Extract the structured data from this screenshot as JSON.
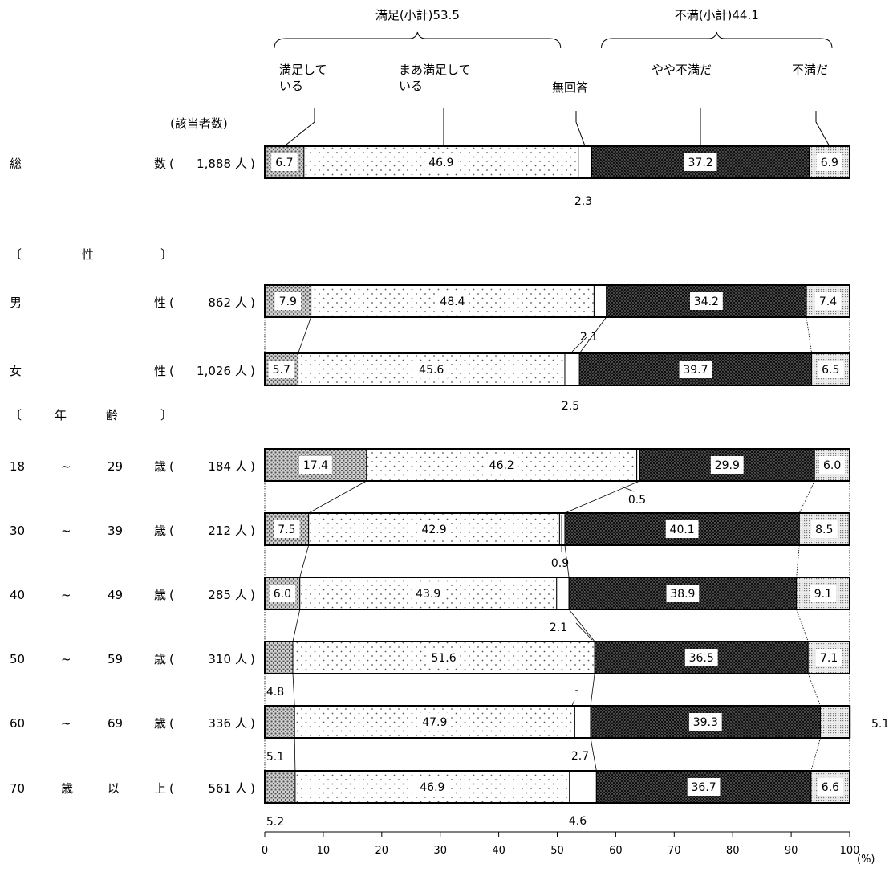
{
  "chart_data": {
    "type": "bar",
    "orientation": "horizontal",
    "stacked": true,
    "xlim": [
      0,
      100
    ],
    "xticks": [
      "0",
      "10",
      "20",
      "30",
      "40",
      "50",
      "60",
      "70",
      "80",
      "90",
      "100"
    ],
    "unit_label": "(%)",
    "count_header": "(該当者数)",
    "groups": [
      {
        "text": "満足(小計)53.5"
      },
      {
        "text": "不満(小計)44.1"
      }
    ],
    "series": [
      {
        "name": "満足している",
        "name_lines": [
          "満足して",
          "いる"
        ],
        "color": "#b8b8b8",
        "pattern": "p-manzoku"
      },
      {
        "name": "まあ満足している",
        "name_lines": [
          "まあ満足して",
          "いる"
        ],
        "color": "#ffffff",
        "pattern": "p-maa"
      },
      {
        "name": "無回答",
        "name_lines": [
          "無回答"
        ],
        "color": "#ffffff",
        "pattern": "none"
      },
      {
        "name": "やや不満だ",
        "name_lines": [
          "やや不満だ"
        ],
        "color": "#111111",
        "pattern": "p-yaya"
      },
      {
        "name": "不満だ",
        "name_lines": [
          "不満だ"
        ],
        "color": "#d8d8d8",
        "pattern": "p-fuman"
      }
    ],
    "section_headers": [
      {
        "chars": [
          "〔",
          "性",
          "〕"
        ]
      },
      {
        "chars": [
          "〔",
          "年",
          "齢",
          "〕"
        ]
      }
    ],
    "rows": [
      {
        "label_parts": [
          "総",
          "数"
        ],
        "count": "1,888",
        "person": "人",
        "values": [
          6.7,
          46.9,
          2.3,
          37.2,
          6.9
        ],
        "labels": [
          "6.7",
          "46.9",
          "2.3",
          "37.2",
          "6.9"
        ]
      },
      {
        "label_parts": [
          "男",
          "性"
        ],
        "count": "862",
        "person": "人",
        "values": [
          7.9,
          48.4,
          2.1,
          34.2,
          7.4
        ],
        "labels": [
          "7.9",
          "48.4",
          "2.1",
          "34.2",
          "7.4"
        ]
      },
      {
        "label_parts": [
          "女",
          "性"
        ],
        "count": "1,026",
        "person": "人",
        "values": [
          5.7,
          45.6,
          2.5,
          39.7,
          6.5
        ],
        "labels": [
          "5.7",
          "45.6",
          "2.5",
          "39.7",
          "6.5"
        ]
      },
      {
        "label_parts": [
          "18",
          "~",
          "29",
          "歳"
        ],
        "count": "184",
        "person": "人",
        "values": [
          17.4,
          46.2,
          0.5,
          29.9,
          6.0
        ],
        "labels": [
          "17.4",
          "46.2",
          "0.5",
          "29.9",
          "6.0"
        ]
      },
      {
        "label_parts": [
          "30",
          "~",
          "39",
          "歳"
        ],
        "count": "212",
        "person": "人",
        "values": [
          7.5,
          42.9,
          0.9,
          40.1,
          8.5
        ],
        "labels": [
          "7.5",
          "42.9",
          "0.9",
          "40.1",
          "8.5"
        ]
      },
      {
        "label_parts": [
          "40",
          "~",
          "49",
          "歳"
        ],
        "count": "285",
        "person": "人",
        "values": [
          6.0,
          43.9,
          2.1,
          38.9,
          9.1
        ],
        "labels": [
          "6.0",
          "43.9",
          "2.1",
          "38.9",
          "9.1"
        ]
      },
      {
        "label_parts": [
          "50",
          "~",
          "59",
          "歳"
        ],
        "count": "310",
        "person": "人",
        "values": [
          4.8,
          51.6,
          0,
          36.5,
          7.1
        ],
        "labels": [
          "4.8",
          "51.6",
          "-",
          "36.5",
          "7.1"
        ]
      },
      {
        "label_parts": [
          "60",
          "~",
          "69",
          "歳"
        ],
        "count": "336",
        "person": "人",
        "values": [
          5.1,
          47.9,
          2.7,
          39.3,
          5.1
        ],
        "labels": [
          "5.1",
          "47.9",
          "2.7",
          "39.3",
          "5.1"
        ]
      },
      {
        "label_parts": [
          "70",
          "歳",
          "以",
          "上"
        ],
        "count": "561",
        "person": "人",
        "values": [
          5.2,
          46.9,
          4.6,
          36.7,
          6.6
        ],
        "labels": [
          "5.2",
          "46.9",
          "4.6",
          "36.7",
          "6.6"
        ]
      }
    ]
  }
}
